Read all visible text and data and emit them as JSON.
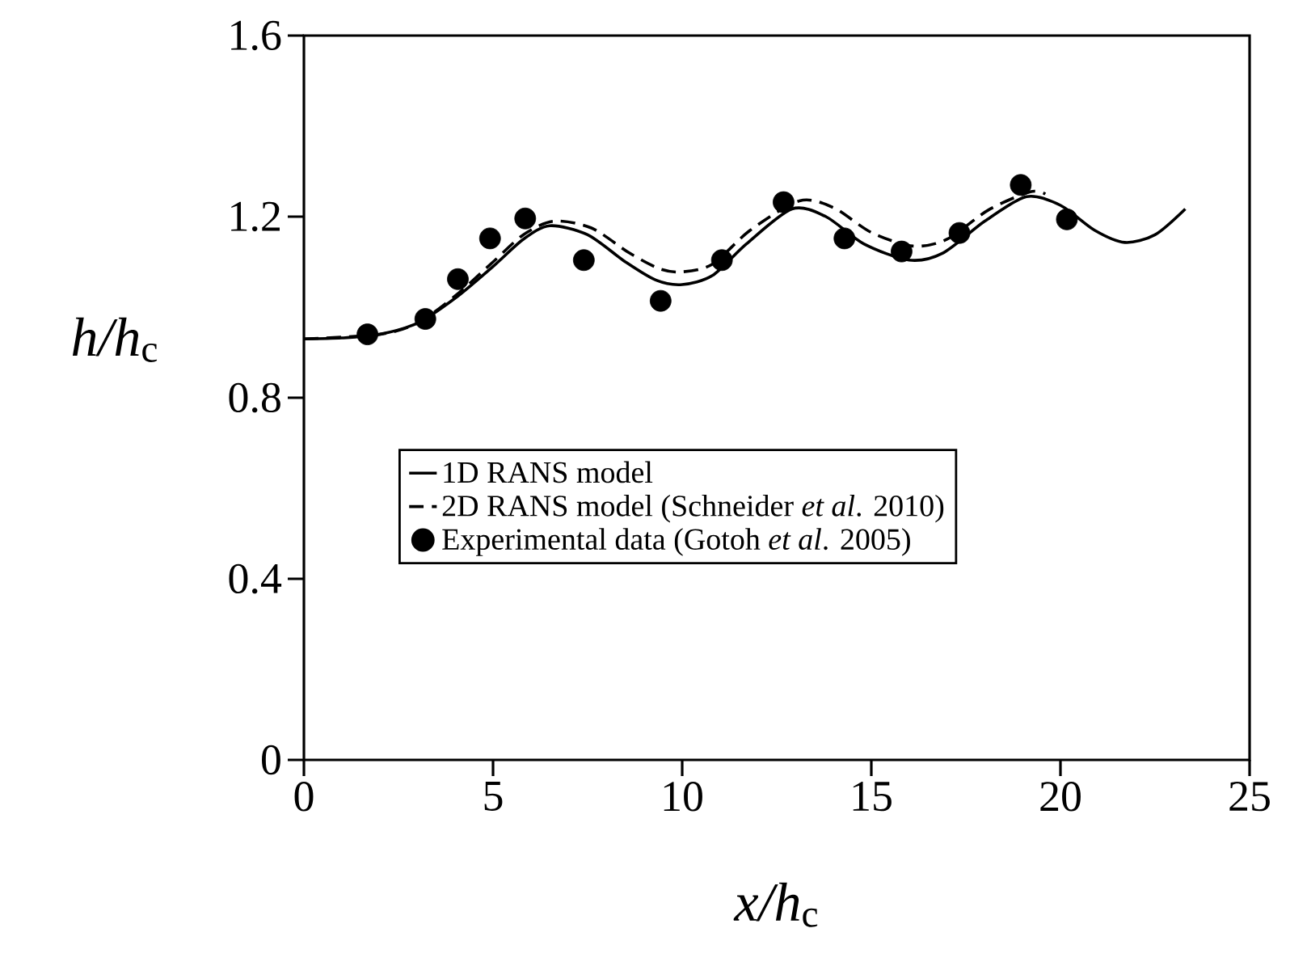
{
  "chart_data": {
    "type": "line",
    "xlabel": "*x/h*$_{c}$",
    "ylabel": "*h/h*$_{c}$",
    "xlim": [
      0,
      25
    ],
    "ylim": [
      0,
      1.6
    ],
    "xticks": [
      0,
      5,
      10,
      15,
      20,
      25
    ],
    "yticks": [
      0,
      0.4,
      0.8,
      1.2,
      1.6
    ],
    "legend": "center",
    "series": [
      {
        "name": "1D RANS model",
        "line_style": "solid",
        "color": "#000000",
        "x": [
          0,
          1,
          2,
          3,
          4,
          5,
          5.8,
          6.5,
          7.5,
          8.5,
          9.3,
          10,
          10.8,
          11.7,
          12.9,
          13.8,
          14.8,
          16,
          16.9,
          18,
          19.1,
          20,
          20.9,
          21.7,
          22.5,
          23.3
        ],
        "values": [
          0.93,
          0.932,
          0.94,
          0.965,
          1.02,
          1.09,
          1.15,
          1.18,
          1.16,
          1.1,
          1.06,
          1.05,
          1.07,
          1.14,
          1.217,
          1.2,
          1.14,
          1.104,
          1.12,
          1.19,
          1.244,
          1.225,
          1.17,
          1.143,
          1.16,
          1.217
        ]
      },
      {
        "name": "2D RANS model (Schneider *et al*. 2010)",
        "line_style": "dashed",
        "color": "#000000",
        "x": [
          0,
          2,
          3,
          4,
          5,
          5.8,
          6.6,
          7.6,
          8.6,
          9.4,
          10,
          10.8,
          11.8,
          13.1,
          14,
          15,
          16.1,
          17,
          18.1,
          19.2,
          19.6
        ],
        "values": [
          0.93,
          0.94,
          0.965,
          1.025,
          1.1,
          1.16,
          1.19,
          1.175,
          1.12,
          1.085,
          1.078,
          1.095,
          1.17,
          1.235,
          1.22,
          1.165,
          1.135,
          1.15,
          1.215,
          1.255,
          1.25
        ]
      },
      {
        "name": "Experimental data (Gotoh *et al*. 2005)",
        "type": "scatter",
        "marker": "circle",
        "color": "#000000",
        "x": [
          1.68,
          3.21,
          4.07,
          4.92,
          5.85,
          7.4,
          9.43,
          11.05,
          12.68,
          14.29,
          15.8,
          17.33,
          18.95,
          20.17
        ],
        "values": [
          0.94,
          0.974,
          1.062,
          1.152,
          1.196,
          1.104,
          1.014,
          1.104,
          1.232,
          1.152,
          1.123,
          1.164,
          1.27,
          1.194
        ]
      }
    ]
  }
}
